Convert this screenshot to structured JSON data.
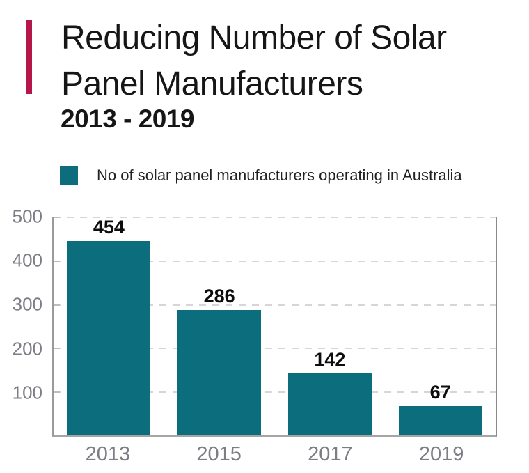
{
  "header": {
    "title_line1": "Reducing Number of Solar",
    "title_line2": "Panel Manufacturers",
    "subtitle": "2013 - 2019"
  },
  "legend": {
    "label": "No of solar panel manufacturers operating in Australia",
    "swatch_color": "#0c6e7c"
  },
  "chart_data": {
    "type": "bar",
    "title": "Reducing Number of Solar Panel Manufacturers 2013 - 2019",
    "categories": [
      "2013",
      "2015",
      "2017",
      "2019"
    ],
    "values": [
      454,
      286,
      142,
      67
    ],
    "series_name": "No of solar panel manufacturers operating in Australia",
    "xlabel": "",
    "ylabel": "",
    "ylim": [
      0,
      500
    ],
    "yticks": [
      500,
      400,
      300,
      200,
      100
    ],
    "grid": "horizontal-dashed",
    "legend_position": "top",
    "bar_color": "#0c6e7c",
    "data_labels": true
  },
  "colors": {
    "accent_bar": "#b5174b",
    "bar": "#0c6e7c",
    "axis_text": "#7d7d86",
    "title_text": "#161616",
    "gridline": "#d6d6d6"
  }
}
